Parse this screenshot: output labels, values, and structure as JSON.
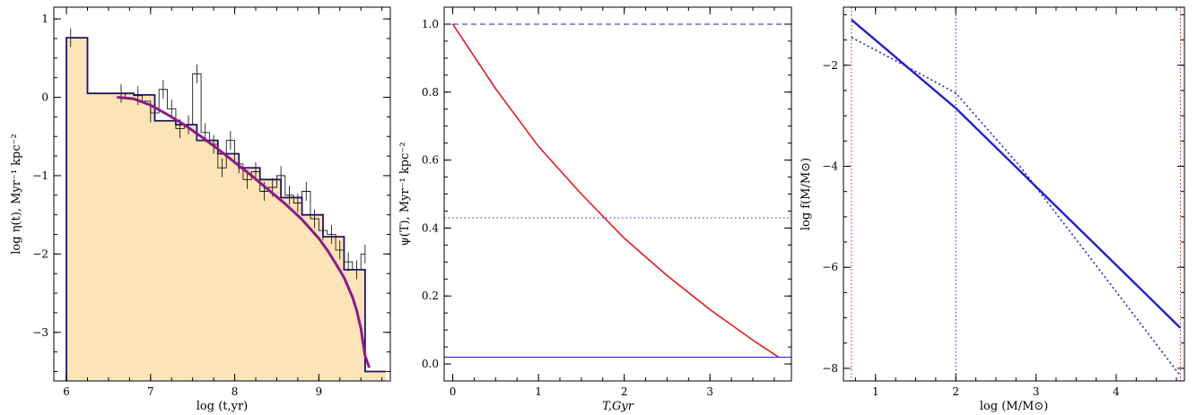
{
  "chart_data": [
    {
      "type": "histogram-line",
      "xlabel": "log (t,yr)",
      "ylabel": "log η(t), Myr⁻¹ kpc⁻²",
      "xlim": [
        5.85,
        9.85
      ],
      "ylim": [
        -3.62,
        1.15
      ],
      "xticks": [
        "6",
        "7",
        "8",
        "9"
      ],
      "yticks": [
        "1",
        "0",
        "−1",
        "−2",
        "−3"
      ],
      "colors": {
        "fill": "#fde3b8",
        "coarse": "#1b1464",
        "fine": "#000000",
        "fit": "#8b1a89",
        "err": "#000000"
      },
      "coarse_bins": {
        "edges": [
          6.0,
          6.25,
          6.8,
          7.05,
          7.3,
          7.55,
          7.8,
          8.05,
          8.3,
          8.55,
          8.8,
          9.05,
          9.3,
          9.55,
          9.8
        ],
        "values": [
          0.76,
          0.05,
          0.03,
          -0.3,
          -0.35,
          -0.55,
          -0.72,
          -0.9,
          -1.05,
          -1.28,
          -1.5,
          -1.78,
          -2.2,
          -3.5
        ]
      },
      "fine_bins": {
        "edges": [
          6.6,
          6.7,
          6.8,
          6.9,
          7.0,
          7.1,
          7.2,
          7.3,
          7.4,
          7.5,
          7.6,
          7.7,
          7.8,
          7.9,
          8.0,
          8.1,
          8.2,
          8.3,
          8.4,
          8.5,
          8.6,
          8.7,
          8.8,
          8.9,
          9.0,
          9.1,
          9.2,
          9.3,
          9.4,
          9.5,
          9.55
        ],
        "values": [
          0.0,
          0.05,
          0.02,
          -0.05,
          -0.2,
          0.1,
          -0.15,
          -0.4,
          -0.35,
          0.3,
          -0.45,
          -0.6,
          -0.9,
          -0.55,
          -0.85,
          -1.05,
          -0.95,
          -1.2,
          -1.15,
          -1.0,
          -1.25,
          -1.35,
          -1.2,
          -1.55,
          -1.7,
          -1.75,
          -1.95,
          -2.1,
          -2.2,
          -2.0
        ]
      },
      "fit_line": {
        "x": [
          6.6,
          6.8,
          7.0,
          7.2,
          7.4,
          7.6,
          7.8,
          8.0,
          8.2,
          8.4,
          8.6,
          8.8,
          9.0,
          9.1,
          9.2,
          9.3,
          9.4,
          9.45,
          9.5,
          9.55,
          9.6
        ],
        "y": [
          0.0,
          -0.02,
          -0.1,
          -0.22,
          -0.35,
          -0.5,
          -0.66,
          -0.83,
          -1.0,
          -1.18,
          -1.36,
          -1.56,
          -1.8,
          -1.95,
          -2.12,
          -2.3,
          -2.55,
          -2.72,
          -2.95,
          -3.3,
          -3.45
        ]
      },
      "error_bars": {
        "x": [
          6.05,
          6.65,
          6.85,
          7.0,
          7.15,
          7.25,
          7.35,
          7.45,
          7.55,
          7.65,
          7.75,
          7.85,
          7.95,
          8.05,
          8.15,
          8.25,
          8.35,
          8.45,
          8.55,
          8.65,
          8.75,
          8.85,
          8.95,
          9.05,
          9.15,
          9.25,
          9.35,
          9.45,
          9.55
        ],
        "y": [
          0.76,
          0.05,
          0.02,
          -0.2,
          0.1,
          -0.15,
          -0.4,
          -0.35,
          0.3,
          -0.45,
          -0.6,
          -0.9,
          -0.55,
          -0.85,
          -1.05,
          -0.95,
          -1.2,
          -1.15,
          -1.0,
          -1.25,
          -1.35,
          -1.2,
          -1.55,
          -1.7,
          -1.75,
          -1.95,
          -2.1,
          -2.2,
          -2.0
        ],
        "err": [
          0.12,
          0.12,
          0.12,
          0.12,
          0.12,
          0.12,
          0.12,
          0.12,
          0.12,
          0.12,
          0.12,
          0.12,
          0.12,
          0.12,
          0.12,
          0.12,
          0.12,
          0.12,
          0.12,
          0.12,
          0.12,
          0.12,
          0.12,
          0.12,
          0.12,
          0.12,
          0.12,
          0.12,
          0.12
        ]
      }
    },
    {
      "type": "line",
      "xlabel": "T,Gyr",
      "ylabel": "ψ(T), Myr⁻¹ kpc⁻²",
      "xlim": [
        -0.1,
        3.95
      ],
      "ylim": [
        -0.05,
        1.05
      ],
      "xticks": [
        "0",
        "1",
        "2",
        "3"
      ],
      "yticks": [
        "0.0",
        "0.2",
        "0.4",
        "0.6",
        "0.8",
        "1.0"
      ],
      "series": [
        {
          "style": "solid",
          "color": "#e31a1c",
          "x": [
            0,
            0.5,
            1.0,
            1.5,
            2.0,
            2.5,
            3.0,
            3.5,
            3.8
          ],
          "y": [
            1.0,
            0.81,
            0.64,
            0.5,
            0.37,
            0.26,
            0.16,
            0.07,
            0.02
          ]
        },
        {
          "style": "dashed",
          "color": "#1f1fcc",
          "y_const": 1.0
        },
        {
          "style": "dotted",
          "color": "#1f1fcc",
          "y_const": 0.43
        },
        {
          "style": "solid-thin",
          "color": "#1f1fcc",
          "y_const": 0.02
        }
      ]
    },
    {
      "type": "line",
      "xlabel": "log (M/M⊙)",
      "ylabel": "log f(M/M⊙)",
      "xlim": [
        0.6,
        4.85
      ],
      "ylim": [
        -8.25,
        -0.85
      ],
      "xticks": [
        "1",
        "2",
        "3",
        "4"
      ],
      "yticks": [
        "−2",
        "−4",
        "−6",
        "−8"
      ],
      "vlines": [
        {
          "x": 0.7,
          "color": "#cc1f1f",
          "style": "dotted"
        },
        {
          "x": 2.0,
          "color": "#1f1fcc",
          "style": "dotted"
        },
        {
          "x": 4.8,
          "color": "#cc1f1f",
          "style": "dotted"
        }
      ],
      "series": [
        {
          "style": "solid",
          "color": "#1f1fcc",
          "x": [
            0.7,
            2.0,
            4.8
          ],
          "y": [
            -1.1,
            -2.85,
            -7.2
          ]
        },
        {
          "style": "dotted",
          "color": "#1f1fcc",
          "x": [
            0.7,
            1.3,
            2.0,
            2.8,
            3.5,
            4.2,
            4.8
          ],
          "y": [
            -1.45,
            -1.95,
            -2.55,
            -4.0,
            -5.45,
            -6.9,
            -8.15
          ]
        }
      ]
    }
  ]
}
